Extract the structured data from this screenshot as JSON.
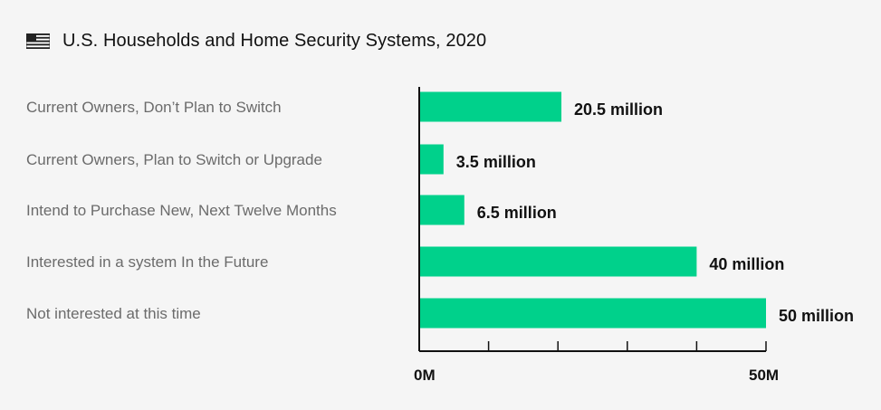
{
  "header": {
    "title": "U.S. Households and Home Security Systems, 2020",
    "icon": "us-flag-icon"
  },
  "chart_data": {
    "type": "bar",
    "orientation": "horizontal",
    "title": "U.S. Households and Home Security Systems, 2020",
    "categories": [
      "Current Owners, Don’t Plan to Switch",
      "Current Owners, Plan to Switch or Upgrade",
      "Intend to Purchase New, Next Twelve Months",
      "Interested in a system In the Future",
      "Not interested at this time"
    ],
    "values": [
      20.5,
      3.5,
      6.5,
      40,
      50
    ],
    "data_labels": [
      "20.5 million",
      "3.5 million",
      "6.5 million",
      "40 million",
      "50 million"
    ],
    "xlim": [
      0,
      50
    ],
    "x_tick_labels": [
      "0M",
      "50M"
    ],
    "x_tick_count": 6,
    "grid": false,
    "bar_color": "#00d18b",
    "axis_color": "#111111"
  }
}
